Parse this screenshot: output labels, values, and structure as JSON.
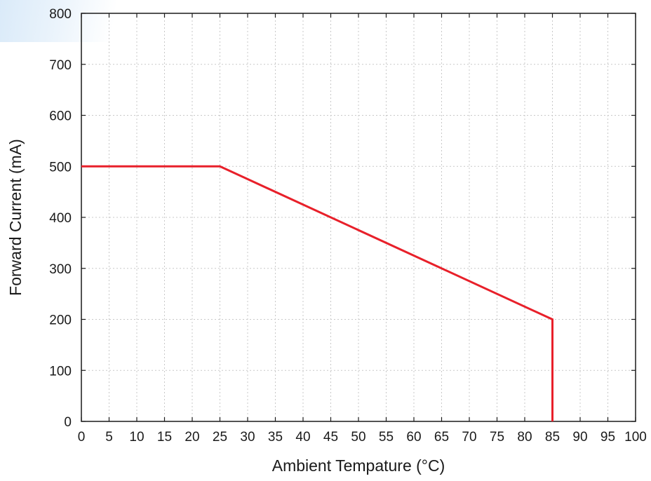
{
  "chart_data": {
    "type": "line",
    "title": "",
    "xlabel": "Ambient Tempature (°C)",
    "ylabel": "Forward Current (mA)",
    "xlim": [
      0,
      100
    ],
    "ylim": [
      0,
      800
    ],
    "x_ticks": [
      0,
      5,
      10,
      15,
      20,
      25,
      30,
      35,
      40,
      45,
      50,
      55,
      60,
      65,
      70,
      75,
      80,
      85,
      90,
      95,
      100
    ],
    "y_ticks": [
      0,
      100,
      200,
      300,
      400,
      500,
      600,
      700,
      800
    ],
    "grid": true,
    "series": [
      {
        "x": [
          0,
          25,
          85,
          85
        ],
        "y": [
          500,
          500,
          200,
          0
        ],
        "color": "#e8202a"
      }
    ]
  }
}
